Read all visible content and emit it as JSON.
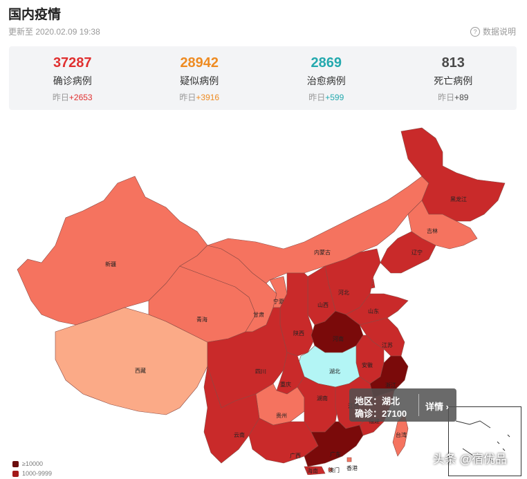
{
  "header": {
    "title": "国内疫情",
    "updated": "更新至 2020.02.09 19:38",
    "explain": "数据说明",
    "explain_icon": "?"
  },
  "stats": [
    {
      "value": "37287",
      "label": "确诊病例",
      "yesterday_label": "昨日",
      "delta": "+2653",
      "color": "#e02f2f"
    },
    {
      "value": "28942",
      "label": "疑似病例",
      "yesterday_label": "昨日",
      "delta": "+3916",
      "color": "#ee8b22"
    },
    {
      "value": "2869",
      "label": "治愈病例",
      "yesterday_label": "昨日",
      "delta": "+599",
      "color": "#24a9ae"
    },
    {
      "value": "813",
      "label": "死亡病例",
      "yesterday_label": "昨日",
      "delta": "+89",
      "color": "#4a4a4a"
    }
  ],
  "map": {
    "provinces": [
      {
        "name": "新疆",
        "level": 3
      },
      {
        "name": "西藏",
        "level": 4
      },
      {
        "name": "青海",
        "level": 3
      },
      {
        "name": "甘肃",
        "level": 3
      },
      {
        "name": "宁夏",
        "level": 3
      },
      {
        "name": "内蒙古",
        "level": 3
      },
      {
        "name": "黑龙江",
        "level": 2
      },
      {
        "name": "吉林",
        "level": 3
      },
      {
        "name": "辽宁",
        "level": 2
      },
      {
        "name": "北京",
        "level": 2
      },
      {
        "name": "天津",
        "level": 2
      },
      {
        "name": "河北",
        "level": 2
      },
      {
        "name": "山西",
        "level": 2
      },
      {
        "name": "陕西",
        "level": 2
      },
      {
        "name": "山东",
        "level": 2
      },
      {
        "name": "河南",
        "level": 1
      },
      {
        "name": "江苏",
        "level": 2
      },
      {
        "name": "安徽",
        "level": 2
      },
      {
        "name": "湖北",
        "level": 0
      },
      {
        "name": "四川",
        "level": 2
      },
      {
        "name": "重庆",
        "level": 2
      },
      {
        "name": "贵州",
        "level": 3
      },
      {
        "name": "湖南",
        "level": 2
      },
      {
        "name": "江西",
        "level": 2
      },
      {
        "name": "浙江",
        "level": 1
      },
      {
        "name": "福建",
        "level": 2
      },
      {
        "name": "云南",
        "level": 2
      },
      {
        "name": "广西",
        "level": 2
      },
      {
        "name": "广东",
        "level": 1
      },
      {
        "name": "香港",
        "level": 3
      },
      {
        "name": "澳门",
        "level": 3
      },
      {
        "name": "台湾",
        "level": 3
      },
      {
        "name": "海南",
        "level": 2
      }
    ],
    "colors": {
      "highlight": "#b3f5f5",
      "very_dark": "#7a0a0a",
      "dark": "#c92a2a",
      "medium": "#f5735f",
      "light": "#fbaa87",
      "border": "#8a4a44"
    },
    "tooltip": {
      "region": "地区：湖北",
      "confirmed": "确诊：27100",
      "detail": "详情 ›"
    }
  },
  "legend": [
    {
      "label": "≥10000",
      "color": "#6b0d0d"
    },
    {
      "label": "1000-9999",
      "color": "#a31a1a"
    }
  ],
  "watermark": "头条 @宿优品"
}
